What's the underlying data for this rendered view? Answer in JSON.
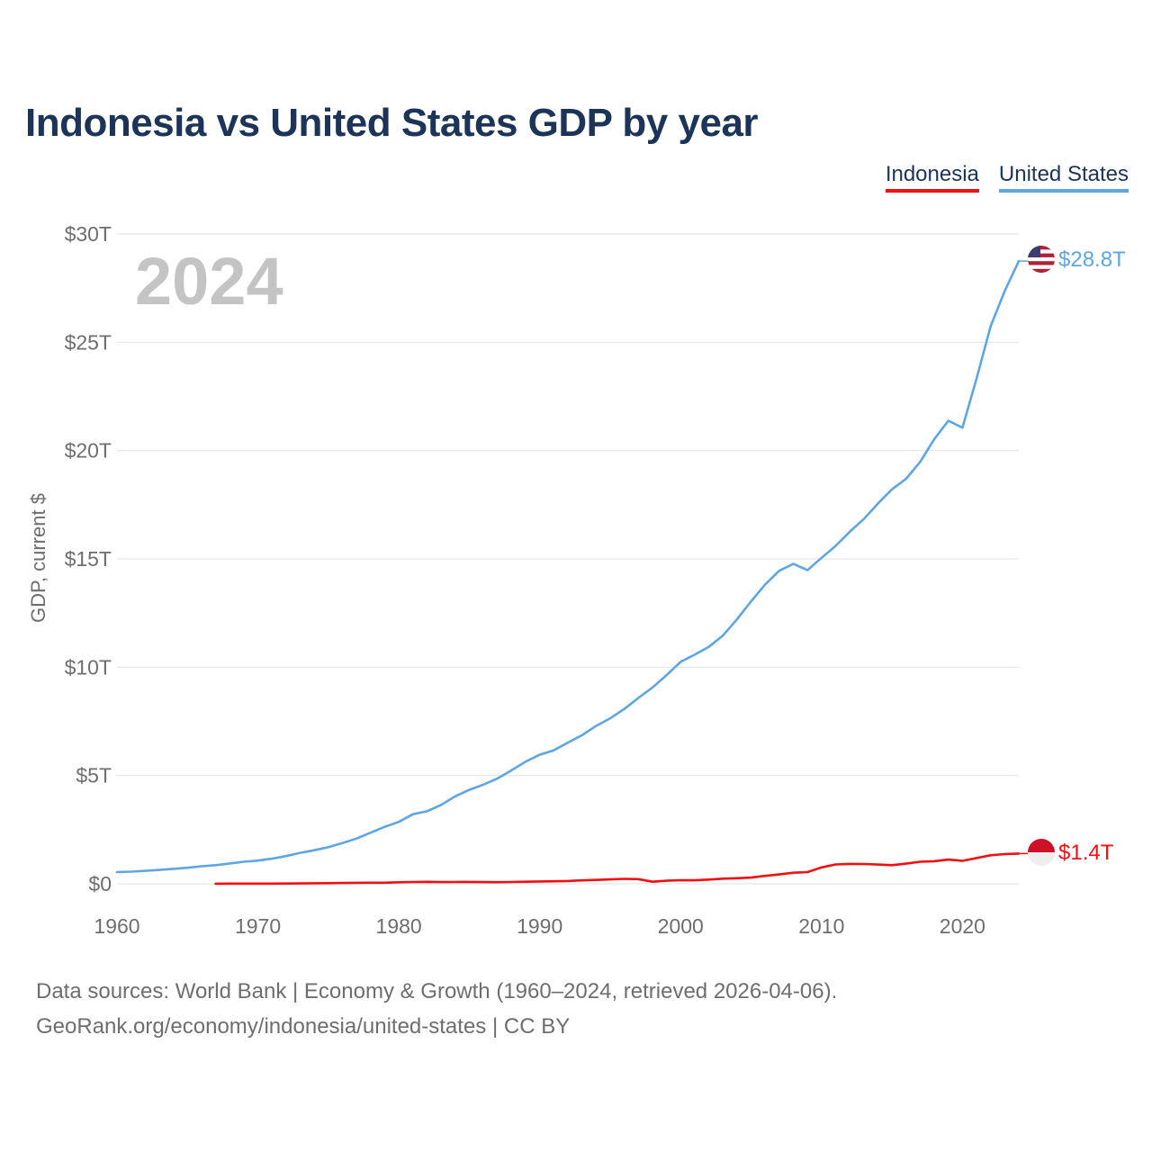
{
  "title": "Indonesia vs United States GDP by year",
  "legend": [
    {
      "label": "Indonesia",
      "color": "#f20f0f"
    },
    {
      "label": "United States",
      "color": "#5ea6e3"
    }
  ],
  "year_watermark": "2024",
  "source": {
    "line1": "Data sources: World Bank | Economy & Growth (1960–2024, retrieved 2026-04-06).",
    "line2": "GeoRank.org/economy/indonesia/united-states | CC BY"
  },
  "chart_data": {
    "type": "line",
    "title": "Indonesia vs United States GDP by year",
    "xlabel": "",
    "ylabel": "GDP, current $",
    "xlim": [
      1960,
      2024
    ],
    "ylim": [
      0,
      30
    ],
    "y_unit": "trillion USD",
    "x_ticks": [
      1960,
      1970,
      1980,
      1990,
      2000,
      2010,
      2020
    ],
    "y_ticks": [
      {
        "value": 0,
        "label": "$0"
      },
      {
        "value": 5,
        "label": "$5T"
      },
      {
        "value": 10,
        "label": "$10T"
      },
      {
        "value": 15,
        "label": "$15T"
      },
      {
        "value": 20,
        "label": "$20T"
      },
      {
        "value": 25,
        "label": "$25T"
      },
      {
        "value": 30,
        "label": "$30T"
      }
    ],
    "grid": true,
    "legend_position": "top-right",
    "series": [
      {
        "name": "United States",
        "color": "#5ea6e3",
        "end_label": "$28.8T",
        "flag": "us-flag",
        "x": [
          1960,
          1961,
          1962,
          1963,
          1964,
          1965,
          1966,
          1967,
          1968,
          1969,
          1970,
          1971,
          1972,
          1973,
          1974,
          1975,
          1976,
          1977,
          1978,
          1979,
          1980,
          1981,
          1982,
          1983,
          1984,
          1985,
          1986,
          1987,
          1988,
          1989,
          1990,
          1991,
          1992,
          1993,
          1994,
          1995,
          1996,
          1997,
          1998,
          1999,
          2000,
          2001,
          2002,
          2003,
          2004,
          2005,
          2006,
          2007,
          2008,
          2009,
          2010,
          2011,
          2012,
          2013,
          2014,
          2015,
          2016,
          2017,
          2018,
          2019,
          2020,
          2021,
          2022,
          2023,
          2024
        ],
        "values": [
          0.54,
          0.56,
          0.6,
          0.64,
          0.69,
          0.74,
          0.81,
          0.86,
          0.94,
          1.02,
          1.07,
          1.16,
          1.28,
          1.43,
          1.55,
          1.69,
          1.88,
          2.09,
          2.36,
          2.63,
          2.86,
          3.21,
          3.35,
          3.64,
          4.04,
          4.34,
          4.58,
          4.86,
          5.24,
          5.64,
          5.96,
          6.16,
          6.52,
          6.86,
          7.29,
          7.64,
          8.07,
          8.58,
          9.06,
          9.63,
          10.25,
          10.58,
          10.94,
          11.46,
          12.21,
          13.04,
          13.82,
          14.45,
          14.77,
          14.48,
          15.05,
          15.6,
          16.25,
          16.84,
          17.55,
          18.21,
          18.7,
          19.48,
          20.53,
          21.38,
          21.06,
          23.32,
          25.74,
          27.36,
          28.75
        ]
      },
      {
        "name": "Indonesia",
        "color": "#f20f0f",
        "end_label": "$1.4T",
        "flag": "indonesia-flag",
        "x": [
          1967,
          1968,
          1969,
          1970,
          1971,
          1972,
          1973,
          1974,
          1975,
          1976,
          1977,
          1978,
          1979,
          1980,
          1981,
          1982,
          1983,
          1984,
          1985,
          1986,
          1987,
          1988,
          1989,
          1990,
          1991,
          1992,
          1993,
          1994,
          1995,
          1996,
          1997,
          1998,
          1999,
          2000,
          2001,
          2002,
          2003,
          2004,
          2005,
          2006,
          2007,
          2008,
          2009,
          2010,
          2011,
          2012,
          2013,
          2014,
          2015,
          2016,
          2017,
          2018,
          2019,
          2020,
          2021,
          2022,
          2023,
          2024
        ],
        "values": [
          0.006,
          0.008,
          0.009,
          0.01,
          0.01,
          0.011,
          0.016,
          0.026,
          0.031,
          0.037,
          0.045,
          0.051,
          0.051,
          0.072,
          0.085,
          0.09,
          0.081,
          0.085,
          0.087,
          0.08,
          0.075,
          0.084,
          0.094,
          0.106,
          0.116,
          0.128,
          0.158,
          0.177,
          0.202,
          0.227,
          0.215,
          0.095,
          0.14,
          0.165,
          0.16,
          0.196,
          0.235,
          0.257,
          0.286,
          0.365,
          0.432,
          0.51,
          0.54,
          0.755,
          0.893,
          0.918,
          0.913,
          0.891,
          0.861,
          0.932,
          1.016,
          1.042,
          1.119,
          1.059,
          1.187,
          1.319,
          1.371,
          1.396
        ]
      }
    ]
  }
}
